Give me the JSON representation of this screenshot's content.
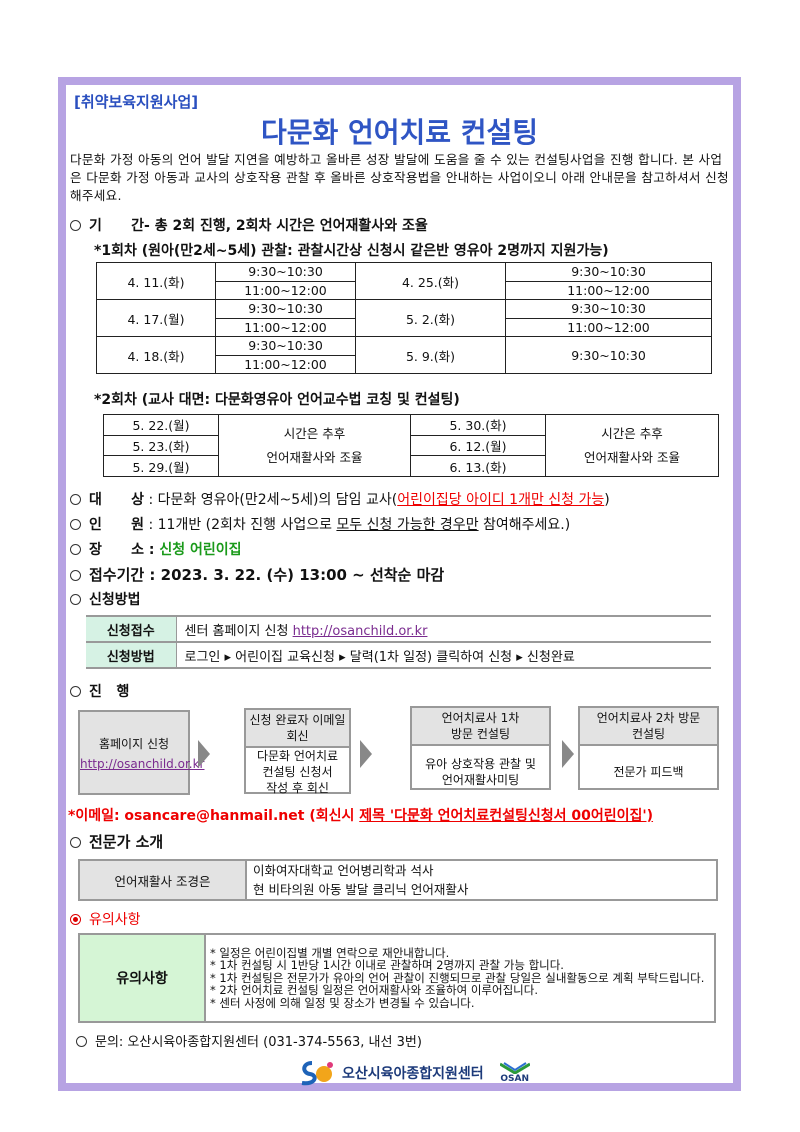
{
  "tag": "[취약보육지원사업]",
  "title": "다문화 언어치료 컨설팅",
  "intro": "  다문화 가정 아동의 언어 발달 지연을 예방하고 올바른 성장 발달에 도움을 줄 수 있는 컨설팅사업을 진행 합니다. 본 사업은 다문화 가정 아동과 교사의 상호작용 관찰 후 올바른 상호작용법을 안내하는 사업이오니 아래 안내문을 참고하셔서 신청해주세요.",
  "period": {
    "label": "기      간",
    "text": "- 총 2회 진행, 2회차 시간은 언어재활사와 조율"
  },
  "round1": {
    "title": "*1회차 (원아(만2세~5세) 관찰: 관찰시간상 신청시 같은반 영유아 2명까지 지원가능)",
    "rows": [
      {
        "date1": "4. 11.(화)",
        "t1a": "9:30~10:30",
        "t1b": "11:00~12:00",
        "date2": "4. 25.(화)",
        "t2a": "9:30~10:30",
        "t2b": "11:00~12:00"
      },
      {
        "date1": "4. 17.(월)",
        "t1a": "9:30~10:30",
        "t1b": "11:00~12:00",
        "date2": "5. 2.(화)",
        "t2a": "9:30~10:30",
        "t2b": "11:00~12:00"
      },
      {
        "date1": "4. 18.(화)",
        "t1a": "9:30~10:30",
        "t1b": "11:00~12:00",
        "date2": "5. 9.(화)",
        "t2a": "9:30~10:30"
      }
    ]
  },
  "round2": {
    "title": "*2회차 (교사 대면: 다문화영유아 언어교수법 코칭 및 컨설팅)",
    "dates1": [
      "5. 22.(월)",
      "5. 23.(화)",
      "5. 29.(월)"
    ],
    "dates2": [
      "5. 30.(화)",
      "6. 12.(월)",
      "6. 13.(화)"
    ],
    "note_a": "시간은 추후",
    "note_b": "언어재활사와 조율"
  },
  "target": {
    "label": "대      상",
    "pre": " : 다문화 영유아(만2세~5세)의 담임 교사(",
    "red": "어린이집당 아이디 1개만 신청 가능",
    "post": ")"
  },
  "count": {
    "label": "인      원",
    "pre": " : 11개반 (2회차 진행 사업으로 ",
    "u": "모두 신청 가능한 경우만",
    "post": " 참여해주세요.)"
  },
  "place": {
    "label": "장      소",
    "sep": " : ",
    "value": "신청 어린이집"
  },
  "receipt": {
    "label": "접수기간",
    "value": " : 2023. 3. 22. (수) 13:00 ~ 선착순 마감"
  },
  "method": {
    "label": "신청방법",
    "rows": [
      {
        "h": "신청접수",
        "v": "센터 홈페이지 신청 ",
        "link": "http://osanchild.or.kr"
      },
      {
        "h": "신청방법",
        "v": "로그인 ▸ 어린이집 교육신청 ▸ 달력(1차 일정) 클릭하여 신청 ▸ 신청완료"
      }
    ]
  },
  "progress": {
    "label": "진   행",
    "step1": {
      "text": "홈페이지 신청",
      "link": "http://osanchild.or.kr"
    },
    "step2": {
      "hd1": "신청 완료자 이메일",
      "hd2": "회신",
      "b1": "다문화 언어치료",
      "b2": "컨설팅 신청서",
      "b3": "작성 후 회신"
    },
    "step3": {
      "hd1": "언어치료사 1차",
      "hd2": "방문 컨설팅",
      "b1": "유아 상호작용 관찰 및",
      "b2": "언어재활사미팅"
    },
    "step4": {
      "hd1": "언어치료사 2차 방문",
      "hd2": "컨설팅",
      "b1": "전문가 피드백"
    }
  },
  "email": {
    "label": "*이메일: osancare@hanmail.net ",
    "pre": "(회신시 ",
    "u": "제목 '다문화 언어치료컨설팅신청서 00어린이집')"
  },
  "expert": {
    "label": "전문가 소개",
    "name": "언어재활사 조경은",
    "line1": "이화여자대학교 언어병리학과 석사",
    "line2": "현 비타의원 아동 발달 클리닉 언어재활사"
  },
  "notes": {
    "label": "유의사항",
    "head": "유의사항",
    "items": [
      "일정은 어린이집별 개별 연락으로 재안내합니다.",
      "1차 컨설팅 시 1반당 1시간 이내로 관찰하며 2명까지 관찰 가능 합니다.",
      "1차 컨설팅은 전문가가 유아의 언어 관찰이 진행되므로 관찰 당일은 실내활동으로 계획 부탁드립니다.",
      "2차 언어치료 컨설팅 일정은 언어재활사와 조율하여 이루어집니다.",
      "센터 사정에 의해 일정 및 장소가 변경될 수 있습니다."
    ]
  },
  "contact": "문의: 오산시육아종합지원센터 (031-374-5563, 내선 3번)",
  "logo": {
    "text": "오산시육아종합지원센터",
    "city": "OSAN"
  },
  "colors": {
    "frame": "#b7a3e3",
    "title": "#2f55c4",
    "red": "#e00000",
    "green": "#1a9a1a"
  }
}
